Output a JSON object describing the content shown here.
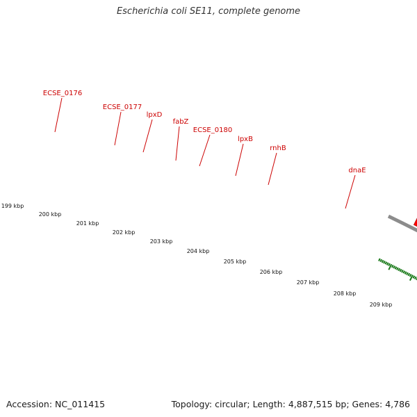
{
  "title": "Escherichia coli SE11, complete genome",
  "footer": {
    "accession": "Accession: NC_011415",
    "summary": "Topology: circular; Length: 4,887,515 bp; Genes: 4,786"
  },
  "colors": {
    "background": "#ffffff",
    "backbone": "#8c8c8c",
    "cds_arrow": "#ff0000",
    "gc_skew_ticks": "#1a7a1a",
    "gene_label": "#cc0000",
    "class_olive": "#6b8e23",
    "class_slate": "#6a5acd",
    "class_magenta": "#ff1493"
  },
  "scale_labels": [
    "199 kbp",
    "200 kbp",
    "201 kbp",
    "202 kbp",
    "203 kbp",
    "204 kbp",
    "205 kbp",
    "206 kbp",
    "207 kbp",
    "208 kbp",
    "209 kbp"
  ],
  "gene_labels": [
    "ECSE_0176",
    "ECSE_0177",
    "lpxD",
    "fabZ",
    "ECSE_0180",
    "lpxB",
    "rnhB",
    "dnaE"
  ],
  "feature_classes": [
    "olive",
    "olive",
    "olive",
    "slate",
    "olive",
    "olive",
    "magenta",
    "magenta",
    "slate"
  ]
}
